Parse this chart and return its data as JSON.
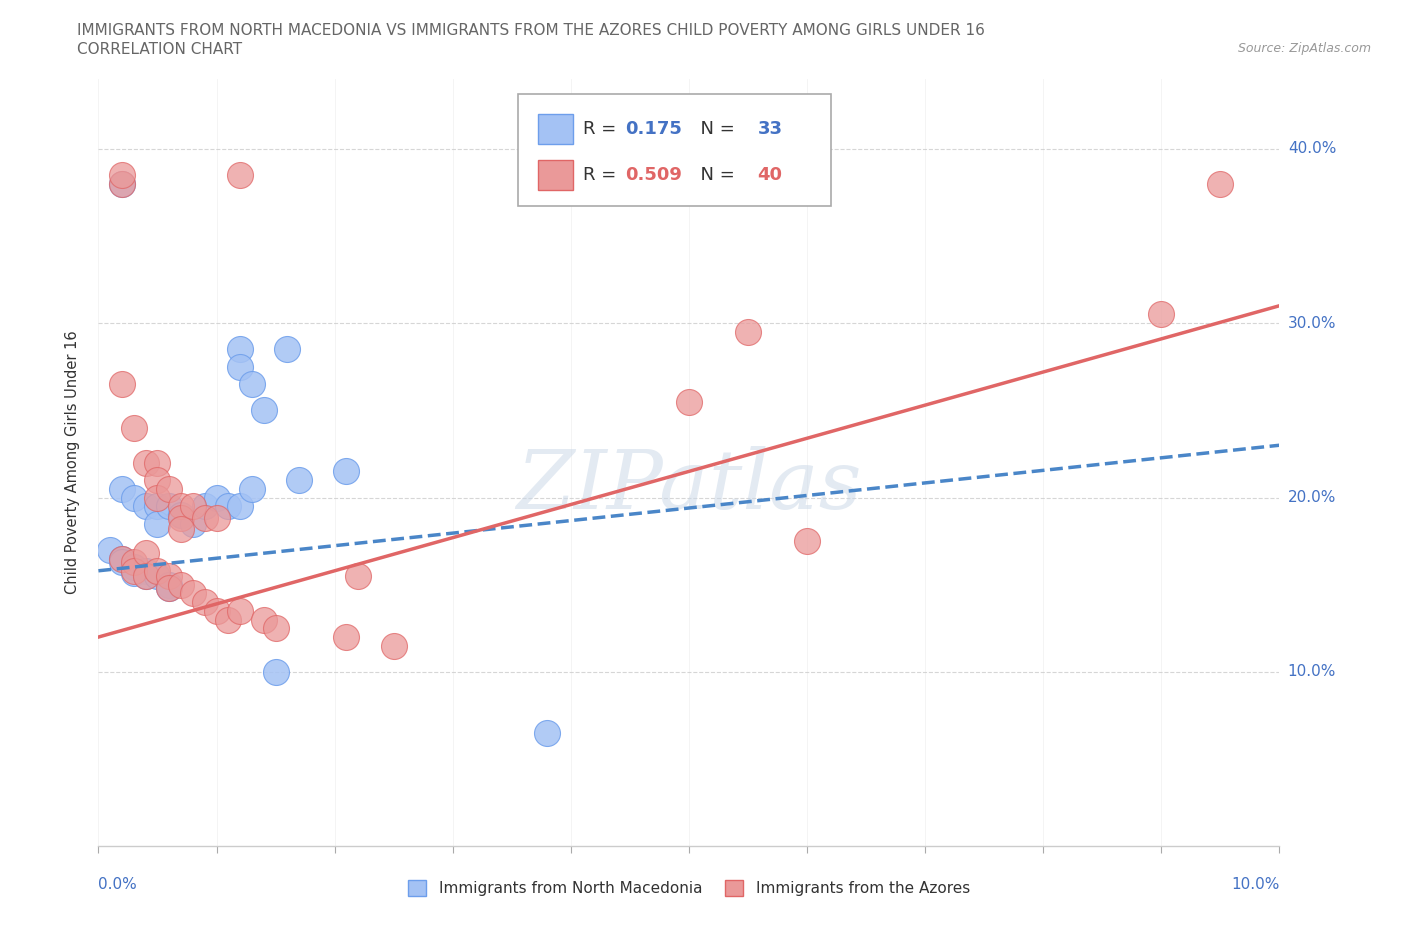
{
  "title_line1": "IMMIGRANTS FROM NORTH MACEDONIA VS IMMIGRANTS FROM THE AZORES CHILD POVERTY AMONG GIRLS UNDER 16",
  "title_line2": "CORRELATION CHART",
  "source": "Source: ZipAtlas.com",
  "ylabel": "Child Poverty Among Girls Under 16",
  "watermark": "ZIPatlas",
  "blue_color": "#a4c2f4",
  "pink_color": "#ea9999",
  "blue_edge_color": "#6d9eeb",
  "pink_edge_color": "#e06666",
  "blue_line_color": "#4a86c8",
  "pink_line_color": "#e06666",
  "blue_scatter": [
    [
      0.002,
      0.38
    ],
    [
      0.012,
      0.285
    ],
    [
      0.012,
      0.275
    ],
    [
      0.013,
      0.265
    ],
    [
      0.014,
      0.25
    ],
    [
      0.016,
      0.285
    ],
    [
      0.002,
      0.205
    ],
    [
      0.003,
      0.2
    ],
    [
      0.004,
      0.195
    ],
    [
      0.005,
      0.195
    ],
    [
      0.005,
      0.185
    ],
    [
      0.006,
      0.195
    ],
    [
      0.007,
      0.19
    ],
    [
      0.008,
      0.185
    ],
    [
      0.009,
      0.195
    ],
    [
      0.01,
      0.2
    ],
    [
      0.011,
      0.195
    ],
    [
      0.012,
      0.195
    ],
    [
      0.013,
      0.205
    ],
    [
      0.017,
      0.21
    ],
    [
      0.021,
      0.215
    ],
    [
      0.001,
      0.17
    ],
    [
      0.002,
      0.165
    ],
    [
      0.002,
      0.163
    ],
    [
      0.003,
      0.16
    ],
    [
      0.003,
      0.157
    ],
    [
      0.004,
      0.158
    ],
    [
      0.004,
      0.155
    ],
    [
      0.005,
      0.155
    ],
    [
      0.006,
      0.15
    ],
    [
      0.006,
      0.148
    ],
    [
      0.015,
      0.1
    ],
    [
      0.038,
      0.065
    ]
  ],
  "pink_scatter": [
    [
      0.002,
      0.38
    ],
    [
      0.002,
      0.385
    ],
    [
      0.012,
      0.385
    ],
    [
      0.095,
      0.38
    ],
    [
      0.055,
      0.295
    ],
    [
      0.09,
      0.305
    ],
    [
      0.002,
      0.265
    ],
    [
      0.003,
      0.24
    ],
    [
      0.004,
      0.22
    ],
    [
      0.005,
      0.22
    ],
    [
      0.005,
      0.21
    ],
    [
      0.005,
      0.2
    ],
    [
      0.006,
      0.205
    ],
    [
      0.007,
      0.195
    ],
    [
      0.007,
      0.188
    ],
    [
      0.007,
      0.182
    ],
    [
      0.008,
      0.195
    ],
    [
      0.009,
      0.188
    ],
    [
      0.01,
      0.188
    ],
    [
      0.05,
      0.255
    ],
    [
      0.06,
      0.175
    ],
    [
      0.002,
      0.165
    ],
    [
      0.003,
      0.163
    ],
    [
      0.003,
      0.158
    ],
    [
      0.004,
      0.168
    ],
    [
      0.004,
      0.155
    ],
    [
      0.005,
      0.158
    ],
    [
      0.006,
      0.155
    ],
    [
      0.006,
      0.148
    ],
    [
      0.007,
      0.15
    ],
    [
      0.008,
      0.145
    ],
    [
      0.009,
      0.14
    ],
    [
      0.01,
      0.135
    ],
    [
      0.011,
      0.13
    ],
    [
      0.012,
      0.135
    ],
    [
      0.014,
      0.13
    ],
    [
      0.015,
      0.125
    ],
    [
      0.021,
      0.12
    ],
    [
      0.025,
      0.115
    ],
    [
      0.022,
      0.155
    ]
  ],
  "blue_trendline": [
    [
      0.0,
      0.158
    ],
    [
      0.1,
      0.23
    ]
  ],
  "pink_trendline": [
    [
      0.0,
      0.12
    ],
    [
      0.1,
      0.31
    ]
  ],
  "xlim": [
    0.0,
    0.1
  ],
  "ylim": [
    0.0,
    0.44
  ],
  "ytick_vals": [
    0.1,
    0.2,
    0.3,
    0.4
  ],
  "ytick_labels": [
    "10.0%",
    "20.0%",
    "30.0%",
    "40.0%"
  ],
  "xtick_label_left": "0.0%",
  "xtick_label_right": "10.0%",
  "r_blue": "0.175",
  "n_blue": "33",
  "r_pink": "0.509",
  "n_pink": "40",
  "legend_label_blue": "Immigrants from North Macedonia",
  "legend_label_pink": "Immigrants from the Azores",
  "blue_accent": "#4472c4",
  "pink_accent": "#e06666",
  "text_dark": "#333333",
  "text_blue": "#4472c4",
  "grid_color": "#cccccc",
  "dot_size": 350
}
